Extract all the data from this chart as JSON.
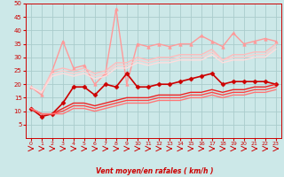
{
  "xlabel": "Vent moyen/en rafales ( km/h )",
  "bg_color": "#cce8e8",
  "grid_color": "#aacccc",
  "x": [
    0,
    1,
    2,
    3,
    4,
    5,
    6,
    7,
    8,
    9,
    10,
    11,
    12,
    13,
    14,
    15,
    16,
    17,
    18,
    19,
    20,
    21,
    22,
    23
  ],
  "lines": [
    {
      "y": [
        19,
        16,
        25,
        36,
        26,
        27,
        20,
        24,
        48,
        20,
        35,
        34,
        35,
        34,
        35,
        35,
        38,
        36,
        34,
        39,
        35,
        36,
        37,
        36
      ],
      "color": "#ff9999",
      "marker": "^",
      "lw": 1.0,
      "ms": 2.5
    },
    {
      "y": [
        19,
        17,
        25,
        26,
        25,
        26,
        24,
        25,
        28,
        28,
        30,
        29,
        30,
        30,
        31,
        31,
        31,
        33,
        29,
        31,
        31,
        32,
        32,
        35
      ],
      "color": "#ffbbbb",
      "marker": null,
      "lw": 1.0,
      "ms": 0
    },
    {
      "y": [
        19,
        17,
        24,
        25,
        24,
        25,
        23,
        24,
        27,
        27,
        29,
        28,
        29,
        29,
        30,
        30,
        30,
        32,
        29,
        30,
        30,
        31,
        31,
        34
      ],
      "color": "#ffcccc",
      "marker": null,
      "lw": 1.0,
      "ms": 0
    },
    {
      "y": [
        19,
        17,
        23,
        24,
        23,
        24,
        22,
        23,
        26,
        26,
        28,
        27,
        28,
        28,
        29,
        29,
        29,
        31,
        28,
        29,
        29,
        30,
        30,
        33
      ],
      "color": "#ffdddd",
      "marker": null,
      "lw": 1.0,
      "ms": 0
    },
    {
      "y": [
        11,
        8,
        9,
        13,
        19,
        19,
        16,
        20,
        19,
        24,
        19,
        19,
        20,
        20,
        21,
        22,
        23,
        24,
        20,
        21,
        21,
        21,
        21,
        20
      ],
      "color": "#cc0000",
      "marker": "D",
      "lw": 1.2,
      "ms": 2.5
    },
    {
      "y": [
        11,
        9,
        9,
        11,
        13,
        13,
        12,
        13,
        14,
        15,
        15,
        15,
        16,
        16,
        16,
        17,
        17,
        18,
        17,
        18,
        18,
        19,
        19,
        20
      ],
      "color": "#ee2222",
      "marker": null,
      "lw": 1.0,
      "ms": 0
    },
    {
      "y": [
        11,
        9,
        9,
        10,
        12,
        12,
        11,
        12,
        13,
        14,
        14,
        14,
        15,
        15,
        15,
        16,
        16,
        17,
        16,
        17,
        17,
        18,
        18,
        19
      ],
      "color": "#ff4444",
      "marker": null,
      "lw": 1.0,
      "ms": 0
    },
    {
      "y": [
        11,
        9,
        9,
        9,
        11,
        11,
        10,
        11,
        12,
        13,
        13,
        13,
        14,
        14,
        14,
        15,
        15,
        16,
        15,
        16,
        16,
        17,
        17,
        18
      ],
      "color": "#ff7777",
      "marker": null,
      "lw": 1.0,
      "ms": 0
    }
  ],
  "ylim": [
    0,
    50
  ],
  "yticks": [
    5,
    10,
    15,
    20,
    25,
    30,
    35,
    40,
    45,
    50
  ],
  "xticks": [
    0,
    1,
    2,
    3,
    4,
    5,
    6,
    7,
    8,
    9,
    10,
    11,
    12,
    13,
    14,
    15,
    16,
    17,
    18,
    19,
    20,
    21,
    22,
    23
  ]
}
